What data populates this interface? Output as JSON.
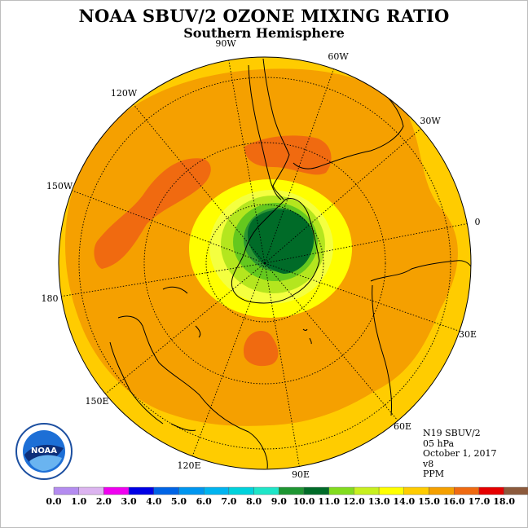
{
  "header": {
    "title": "NOAA SBUV/2 OZONE MIXING RATIO",
    "subtitle": "Southern Hemisphere"
  },
  "map": {
    "projection": "south-polar-stereographic",
    "longitude_labels": [
      "90W",
      "60W",
      "30W",
      "0",
      "30E",
      "60E",
      "90E",
      "120E",
      "150E",
      "180",
      "150W",
      "120W"
    ],
    "colors": {
      "background_field": "#ffcc00",
      "orange": "#f5a000",
      "dark_orange": "#f06a10",
      "yellow": "#ffff00",
      "light_yellow": "#f4ff40",
      "light_green": "#b4e61e",
      "green": "#64c81e",
      "mid_green": "#2d9632",
      "dark_green": "#006b28"
    }
  },
  "info": {
    "lines": [
      "N19 SBUV/2",
      "05 hPa",
      "October 1, 2017",
      "v8",
      "PPM"
    ]
  },
  "logo": {
    "text": "NOAA"
  },
  "colorbar": {
    "labels": [
      "0.0",
      "1.0",
      "2.0",
      "3.0",
      "4.0",
      "5.0",
      "6.0",
      "7.0",
      "8.0",
      "9.0",
      "10.0",
      "11.0",
      "12.0",
      "13.0",
      "14.0",
      "15.0",
      "16.0",
      "17.0",
      "18.0"
    ],
    "colors": [
      "#b48cf0",
      "#dcb4f0",
      "#f000f0",
      "#0000e6",
      "#0064e6",
      "#0096f0",
      "#00b4f0",
      "#00d2dc",
      "#1ee6c8",
      "#1e9632",
      "#006b28",
      "#82dc1e",
      "#c8f01e",
      "#ffff00",
      "#ffcc00",
      "#f5a000",
      "#f06a10",
      "#e60000",
      "#8c5a3c"
    ]
  }
}
